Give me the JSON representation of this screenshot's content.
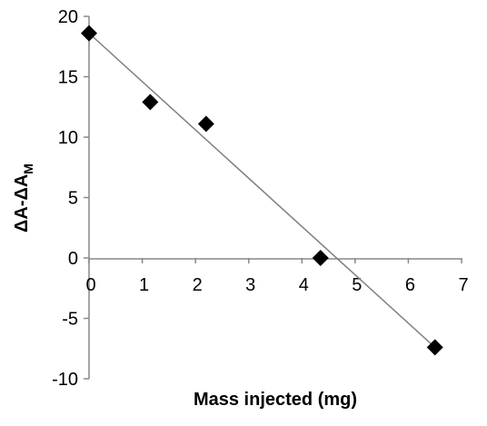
{
  "chart_data": {
    "type": "scatter",
    "title": "",
    "xlabel": "Mass injected (mg)",
    "ylabel": {
      "main": "ΔA-ΔA",
      "subscript": "M"
    },
    "xlim": [
      0,
      7
    ],
    "ylim": [
      -10,
      20
    ],
    "xticks": [
      0,
      1,
      2,
      3,
      4,
      5,
      6,
      7
    ],
    "yticks": [
      -10,
      -5,
      0,
      5,
      10,
      15,
      20
    ],
    "xtick_labels": [
      "0",
      "1",
      "2",
      "3",
      "4",
      "5",
      "6",
      "7"
    ],
    "ytick_labels": [
      "-10",
      "-5",
      "0",
      "5",
      "10",
      "15",
      "20"
    ],
    "grid": false,
    "legend": false,
    "series": [
      {
        "marker": "diamond",
        "color": "#000000",
        "points": [
          {
            "x": 0.0,
            "y": 18.6
          },
          {
            "x": 1.15,
            "y": 12.9
          },
          {
            "x": 2.2,
            "y": 11.1
          },
          {
            "x": 4.35,
            "y": 0.0
          },
          {
            "x": 6.5,
            "y": -7.4
          }
        ]
      }
    ],
    "trendline": {
      "type": "linear",
      "color": "#7f7f7f",
      "start": {
        "x": 0.0,
        "y": 18.6
      },
      "end": {
        "x": 6.5,
        "y": -7.4
      }
    }
  }
}
